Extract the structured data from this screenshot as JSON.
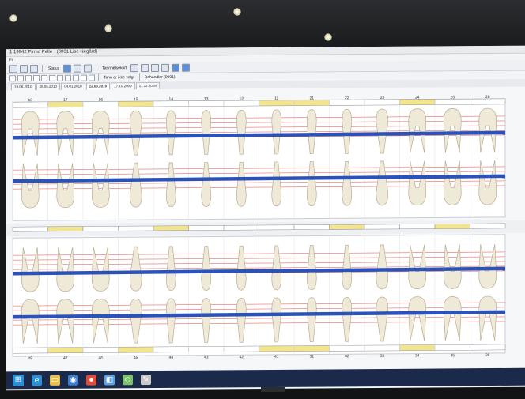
{
  "window": {
    "title_left": "(0001 Lise Negård)",
    "title_prefix": "1 19942 Pirmo Pelle"
  },
  "menu": {
    "item": "Fil"
  },
  "toolbar": {
    "status_label": "Status",
    "tannhelsekort_label": "Tannhelsekort"
  },
  "toolbar2": {
    "mode_text": "Tann er ikke valgt",
    "behandler_text": "Behandler (0001)"
  },
  "date_tabs": [
    "19.06.2010",
    "28.05.2010",
    "04.01.2010",
    "12.03.2010",
    "17.10.2009",
    "11.12.2008"
  ],
  "upper_tooth_numbers": [
    "18",
    "17",
    "16",
    "15",
    "14",
    "13",
    "12",
    "11",
    "21",
    "22",
    "23",
    "24",
    "25",
    "26"
  ],
  "lower_tooth_numbers": [
    "48",
    "47",
    "46",
    "45",
    "44",
    "43",
    "42",
    "41",
    "31",
    "32",
    "33",
    "34",
    "35",
    "36"
  ],
  "colors": {
    "bone_line": "#2a52b8",
    "red_guides": "#e0554f",
    "yellow_cell": "#f3e48e",
    "white_cell": "#ffffff"
  },
  "taskbar": {
    "start_glyph": "⊞",
    "apps": [
      "e",
      "▭",
      "◉",
      "●",
      "◧",
      "◇",
      "✎"
    ]
  }
}
